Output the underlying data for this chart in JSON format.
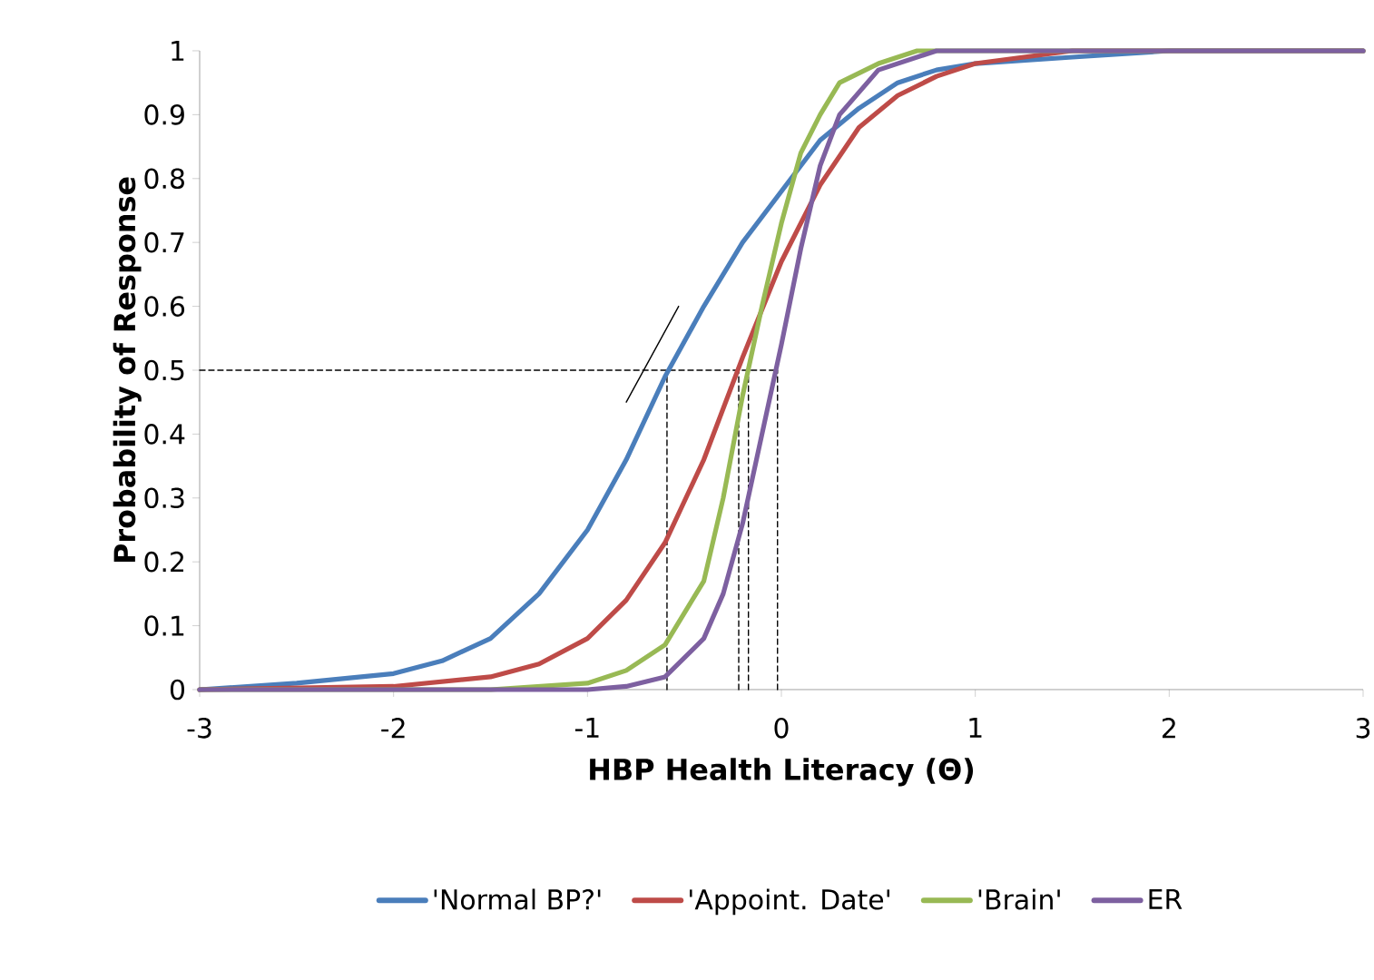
{
  "chart_data": {
    "type": "line",
    "xlabel": "HBP Health Literacy (Θ)",
    "ylabel": "Probability of Response",
    "xlim": [
      -3,
      3
    ],
    "ylim": [
      0,
      1
    ],
    "xticks": [
      -3,
      -2,
      -1,
      0,
      1,
      2,
      3
    ],
    "yticks": [
      0,
      0.1,
      0.2,
      0.3,
      0.4,
      0.5,
      0.6,
      0.7,
      0.8,
      0.9,
      1
    ],
    "grid": false,
    "legend": "bottom",
    "marker": "none",
    "line_style": "solid",
    "series": [
      {
        "name": "'Normal BP?'",
        "color": "#4a7ebb",
        "x": [
          -3,
          -2.5,
          -2,
          -1.75,
          -1.5,
          -1.25,
          -1,
          -0.8,
          -0.6,
          -0.4,
          -0.2,
          0,
          0.2,
          0.4,
          0.6,
          0.8,
          1,
          1.5,
          2,
          3
        ],
        "values": [
          0,
          0.01,
          0.025,
          0.045,
          0.08,
          0.15,
          0.25,
          0.36,
          0.49,
          0.6,
          0.7,
          0.78,
          0.86,
          0.91,
          0.95,
          0.97,
          0.98,
          0.99,
          1,
          1
        ]
      },
      {
        "name": "'Appoint. Date'",
        "color": "#be4b48",
        "x": [
          -3,
          -2,
          -1.5,
          -1.25,
          -1,
          -0.8,
          -0.6,
          -0.4,
          -0.2,
          0,
          0.2,
          0.4,
          0.6,
          0.8,
          1,
          1.5,
          3
        ],
        "values": [
          0,
          0.005,
          0.02,
          0.04,
          0.08,
          0.14,
          0.23,
          0.36,
          0.52,
          0.67,
          0.79,
          0.88,
          0.93,
          0.96,
          0.98,
          1,
          1
        ]
      },
      {
        "name": "'Brain'",
        "color": "#98b954",
        "x": [
          -3,
          -1.5,
          -1,
          -0.8,
          -0.6,
          -0.4,
          -0.3,
          -0.2,
          -0.1,
          0,
          0.1,
          0.2,
          0.3,
          0.5,
          0.7,
          3
        ],
        "values": [
          0,
          0,
          0.01,
          0.03,
          0.07,
          0.17,
          0.3,
          0.46,
          0.6,
          0.73,
          0.84,
          0.9,
          0.95,
          0.98,
          1,
          1
        ]
      },
      {
        "name": "ER",
        "color": "#7d60a0",
        "x": [
          -3,
          -1,
          -0.8,
          -0.6,
          -0.4,
          -0.3,
          -0.2,
          -0.1,
          0,
          0.1,
          0.2,
          0.3,
          0.5,
          0.8,
          3
        ],
        "values": [
          0,
          0,
          0.005,
          0.02,
          0.08,
          0.15,
          0.26,
          0.4,
          0.54,
          0.69,
          0.82,
          0.9,
          0.97,
          1,
          1
        ]
      },
      {
        "color": "#000000",
        "line_style": "dashed",
        "x": [
          -3,
          -0.02
        ],
        "values": [
          0.5,
          0.5
        ]
      },
      {
        "color": "#000000",
        "line_style": "dashed",
        "x": [
          -0.59,
          -0.59
        ],
        "values": [
          0,
          0.5
        ]
      },
      {
        "color": "#000000",
        "line_style": "dashed",
        "x": [
          -0.22,
          -0.22
        ],
        "values": [
          0,
          0.5
        ]
      },
      {
        "color": "#000000",
        "line_style": "dashed",
        "x": [
          -0.17,
          -0.17
        ],
        "values": [
          0,
          0.5
        ]
      },
      {
        "color": "#000000",
        "line_style": "dashed",
        "x": [
          -0.02,
          -0.02
        ],
        "values": [
          0,
          0.5
        ]
      },
      {
        "color": "#000000",
        "x": [
          -0.8,
          -0.53
        ],
        "values": [
          0.45,
          0.6
        ]
      }
    ]
  }
}
